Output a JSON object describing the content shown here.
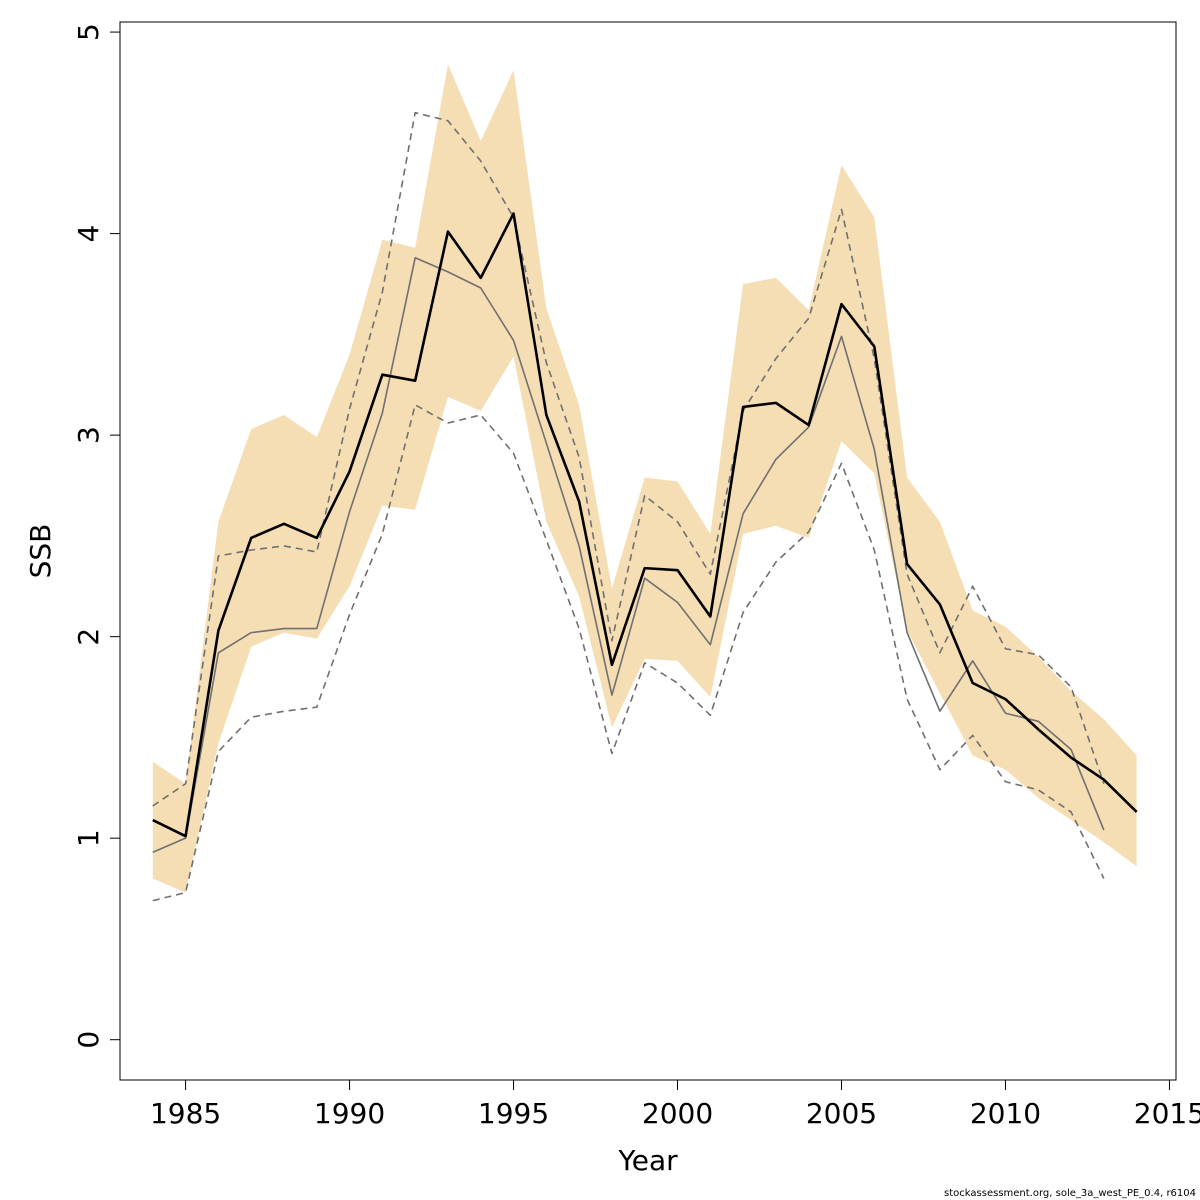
{
  "chart_data": {
    "type": "line",
    "xlabel": "Year",
    "ylabel": "SSB",
    "xlim": [
      1983,
      2015.2
    ],
    "ylim": [
      -0.2,
      5.05
    ],
    "x_ticks": [
      1985,
      1990,
      1995,
      2000,
      2005,
      2010,
      2015
    ],
    "y_ticks": [
      0,
      1,
      2,
      3,
      4,
      5
    ],
    "footer": "stockassessment.org, sole_3a_west_PE_0.4, r6104",
    "colors": {
      "band": "#f5deb3",
      "estimate": "#000000",
      "retro": "#707070",
      "retro_dashed": "#707070"
    },
    "band": {
      "x": [
        1984,
        1985,
        1986,
        1987,
        1988,
        1989,
        1990,
        1991,
        1992,
        1993,
        1994,
        1995,
        1996,
        1997,
        1998,
        1999,
        2000,
        2001,
        2002,
        2003,
        2004,
        2005,
        2006,
        2007,
        2008,
        2009,
        2010,
        2011,
        2012,
        2013,
        2014
      ],
      "lower": [
        0.8,
        0.73,
        1.47,
        1.95,
        2.02,
        1.99,
        2.25,
        2.65,
        2.63,
        3.19,
        3.12,
        3.39,
        2.57,
        2.2,
        1.55,
        1.89,
        1.88,
        1.7,
        2.51,
        2.55,
        2.49,
        2.97,
        2.81,
        2.03,
        1.72,
        1.41,
        1.34,
        1.2,
        1.09,
        0.98,
        0.86
      ],
      "upper": [
        1.38,
        1.27,
        2.57,
        3.03,
        3.1,
        2.99,
        3.4,
        3.97,
        3.93,
        4.84,
        4.46,
        4.81,
        3.63,
        3.15,
        2.24,
        2.79,
        2.77,
        2.51,
        3.75,
        3.78,
        3.62,
        4.34,
        4.08,
        2.79,
        2.57,
        2.13,
        2.05,
        1.9,
        1.73,
        1.59,
        1.41
      ]
    },
    "series": [
      {
        "x": [
          1984,
          1985,
          1986,
          1987,
          1988,
          1989,
          1990,
          1991,
          1992,
          1993,
          1994,
          1995,
          1996,
          1997,
          1998,
          1999,
          2000,
          2001,
          2002,
          2003,
          2004,
          2005,
          2006,
          2007,
          2008,
          2009,
          2010,
          2011,
          2012,
          2013,
          2014
        ],
        "values": [
          1.09,
          1.01,
          2.03,
          2.49,
          2.56,
          2.49,
          2.82,
          3.3,
          3.27,
          4.01,
          3.78,
          4.1,
          3.1,
          2.67,
          1.86,
          2.34,
          2.33,
          2.1,
          3.14,
          3.16,
          3.05,
          3.65,
          3.44,
          2.36,
          2.16,
          1.77,
          1.69,
          1.54,
          1.4,
          1.29,
          1.13
        ],
        "style": "solid-thick"
      },
      {
        "x": [
          1984,
          1985,
          1986,
          1987,
          1988,
          1989,
          1990,
          1991,
          1992,
          1993,
          1994,
          1995,
          1996,
          1997,
          1998,
          1999,
          2000,
          2001,
          2002,
          2003,
          2004,
          2005,
          2006,
          2007,
          2008,
          2009,
          2010,
          2011,
          2012,
          2013
        ],
        "values": [
          0.93,
          1.0,
          1.92,
          2.02,
          2.04,
          2.04,
          2.62,
          3.11,
          3.88,
          3.81,
          3.73,
          3.47,
          2.96,
          2.45,
          1.71,
          2.29,
          2.17,
          1.96,
          2.61,
          2.88,
          3.04,
          3.49,
          2.93,
          2.02,
          1.63,
          1.88,
          1.62,
          1.58,
          1.44,
          1.04
        ],
        "style": "solid-thin"
      },
      {
        "x": [
          1984,
          1985,
          1986,
          1987,
          1988,
          1989,
          1990,
          1991,
          1992,
          1993,
          1994,
          1995,
          1996,
          1997,
          1998,
          1999,
          2000,
          2001,
          2002,
          2003,
          2004,
          2005,
          2006,
          2007,
          2008,
          2009,
          2010,
          2011,
          2012,
          2013
        ],
        "values": [
          1.16,
          1.27,
          2.4,
          2.43,
          2.45,
          2.42,
          3.13,
          3.71,
          4.6,
          4.56,
          4.36,
          4.08,
          3.36,
          2.89,
          1.98,
          2.7,
          2.57,
          2.31,
          3.12,
          3.38,
          3.58,
          4.12,
          3.38,
          2.31,
          1.92,
          2.25,
          1.94,
          1.91,
          1.75,
          1.27
        ],
        "style": "dashed"
      },
      {
        "x": [
          1984,
          1985,
          1986,
          1987,
          1988,
          1989,
          1990,
          1991,
          1992,
          1993,
          1994,
          1995,
          1996,
          1997,
          1998,
          1999,
          2000,
          2001,
          2002,
          2003,
          2004,
          2005,
          2006,
          2007,
          2008,
          2009,
          2010,
          2011,
          2012,
          2013
        ],
        "values": [
          0.69,
          0.73,
          1.43,
          1.6,
          1.63,
          1.65,
          2.11,
          2.51,
          3.15,
          3.06,
          3.1,
          2.91,
          2.48,
          2.04,
          1.42,
          1.87,
          1.77,
          1.61,
          2.12,
          2.37,
          2.52,
          2.86,
          2.43,
          1.69,
          1.34,
          1.51,
          1.28,
          1.24,
          1.13,
          0.8
        ],
        "style": "dashed"
      }
    ]
  }
}
